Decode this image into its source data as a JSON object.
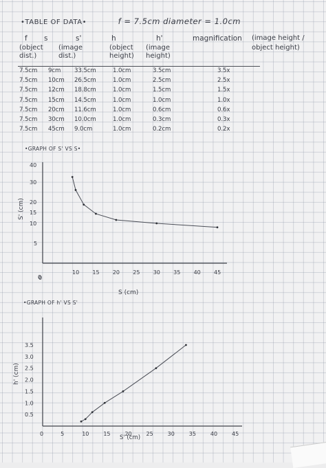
{
  "header": {
    "section": "•TABLE OF DATA•",
    "params": "f = 7.5cm   diameter = 1.0cm"
  },
  "table": {
    "columns": [
      {
        "symbol": "f",
        "desc": []
      },
      {
        "symbol": "s",
        "desc": [
          "(object",
          "dist.)"
        ]
      },
      {
        "symbol": "s'",
        "desc": [
          "(image",
          "dist.)"
        ]
      },
      {
        "symbol": "h",
        "desc": [
          "(object",
          "height)"
        ]
      },
      {
        "symbol": "h'",
        "desc": [
          "(image",
          "height)"
        ]
      },
      {
        "symbol": "magnification",
        "desc": [
          "(image height /",
          "object height)"
        ]
      }
    ],
    "rows": [
      [
        "7.5cm",
        "9cm",
        "33.5cm",
        "1.0cm",
        "3.5cm",
        "3.5x"
      ],
      [
        "7.5cm",
        "10cm",
        "26.5cm",
        "1.0cm",
        "2.5cm",
        "2.5x"
      ],
      [
        "7.5cm",
        "12cm",
        "18.8cm",
        "1.0cm",
        "1.5cm",
        "1.5x"
      ],
      [
        "7.5cm",
        "15cm",
        "14.5cm",
        "1.0cm",
        "1.0cm",
        "1.0x"
      ],
      [
        "7.5cm",
        "20cm",
        "11.6cm",
        "1.0cm",
        "0.6cm",
        "0.6x"
      ],
      [
        "7.5cm",
        "30cm",
        "10.0cm",
        "1.0cm",
        "0.3cm",
        "0.3x"
      ],
      [
        "7.5cm",
        "45cm",
        "9.0cm",
        "1.0cm",
        "0.2cm",
        "0.2x"
      ]
    ]
  },
  "chart_data": [
    {
      "type": "line",
      "title": "•GRAPH OF S' VS S•",
      "xlabel": "S (cm)",
      "ylabel": "S' (cm)",
      "x": [
        9,
        10,
        12,
        15,
        20,
        30,
        45
      ],
      "y": [
        33.5,
        26.5,
        18.8,
        14.5,
        11.6,
        10.0,
        9.0
      ],
      "xlim": [
        0,
        45
      ],
      "ylim": [
        0,
        40
      ],
      "xticks": [
        "0",
        "10",
        "15",
        "20",
        "25",
        "30",
        "35",
        "40",
        "45"
      ],
      "yticks": [
        "0",
        "5",
        "10",
        "15",
        "20",
        "30",
        "40"
      ],
      "grid": true
    },
    {
      "type": "line",
      "title": "•GRAPH OF h' VS S'",
      "xlabel": "S' (cm)",
      "ylabel": "h' (cm)",
      "x": [
        9.0,
        10.0,
        11.6,
        14.5,
        18.8,
        26.5,
        33.5
      ],
      "y": [
        0.2,
        0.3,
        0.6,
        1.0,
        1.5,
        2.5,
        3.5
      ],
      "xlim": [
        0,
        45
      ],
      "ylim": [
        0,
        3.5
      ],
      "xticks": [
        "0",
        "5",
        "10",
        "15",
        "20",
        "25",
        "30",
        "35",
        "40",
        "45"
      ],
      "yticks": [
        "0",
        "0.5",
        "1.0",
        "1.5",
        "2.0",
        "2.5",
        "3.0",
        "3.5"
      ],
      "grid": true
    }
  ]
}
